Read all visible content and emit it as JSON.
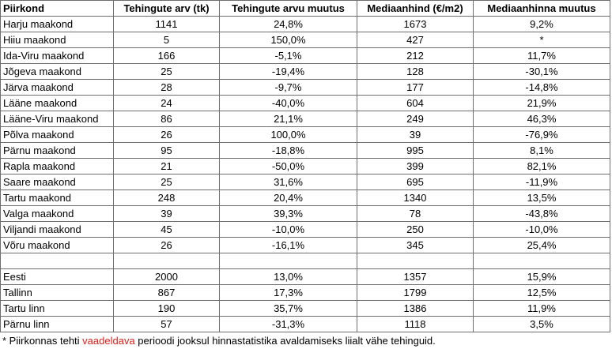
{
  "table": {
    "header": [
      "Piirkond",
      "Tehingute arv (tk)",
      "Tehingute arvu muutus",
      "Mediaanhind (€/m2)",
      "Mediaanhinna muutus"
    ],
    "groups": [
      {
        "rows": [
          [
            "Harju maakond",
            "1141",
            "24,8%",
            "1673",
            "9,2%"
          ],
          [
            "Hiiu maakond",
            "5",
            "150,0%",
            "427",
            "*"
          ],
          [
            "Ida-Viru maakond",
            "166",
            "-5,1%",
            "212",
            "11,7%"
          ],
          [
            "Jõgeva maakond",
            "25",
            "-19,4%",
            "128",
            "-30,1%"
          ],
          [
            "Järva maakond",
            "28",
            "-9,7%",
            "177",
            "-14,8%"
          ],
          [
            "Lääne maakond",
            "24",
            "-40,0%",
            "604",
            "21,9%"
          ],
          [
            "Lääne-Viru maakond",
            "86",
            "21,1%",
            "249",
            "46,3%"
          ],
          [
            "Põlva maakond",
            "26",
            "100,0%",
            "39",
            "-76,9%"
          ],
          [
            "Pärnu maakond",
            "95",
            "-18,8%",
            "995",
            "8,1%"
          ],
          [
            "Rapla maakond",
            "21",
            "-50,0%",
            "399",
            "82,1%"
          ],
          [
            "Saare maakond",
            "25",
            "31,6%",
            "695",
            "-11,9%"
          ],
          [
            "Tartu maakond",
            "248",
            "20,4%",
            "1340",
            "13,5%"
          ],
          [
            "Valga maakond",
            "39",
            "39,3%",
            "78",
            "-43,8%"
          ],
          [
            "Viljandi maakond",
            "45",
            "-10,0%",
            "250",
            "-10,0%"
          ],
          [
            "Võru maakond",
            "26",
            "-16,1%",
            "345",
            "25,4%"
          ]
        ]
      },
      {
        "rows": [
          [
            "Eesti",
            "2000",
            "13,0%",
            "1357",
            "15,9%"
          ],
          [
            "Tallinn",
            "867",
            "17,3%",
            "1799",
            "12,5%"
          ],
          [
            "Tartu linn",
            "190",
            "35,7%",
            "1386",
            "11,9%"
          ],
          [
            "Pärnu linn",
            "57",
            "-31,3%",
            "1118",
            "3,5%"
          ]
        ]
      }
    ],
    "footnote": {
      "before": "* Piirkonnas tehti ",
      "highlight": "vaadeldava",
      "after": " perioodi jooksul hinnastatistika avaldamiseks liialt vähe tehinguid."
    }
  }
}
